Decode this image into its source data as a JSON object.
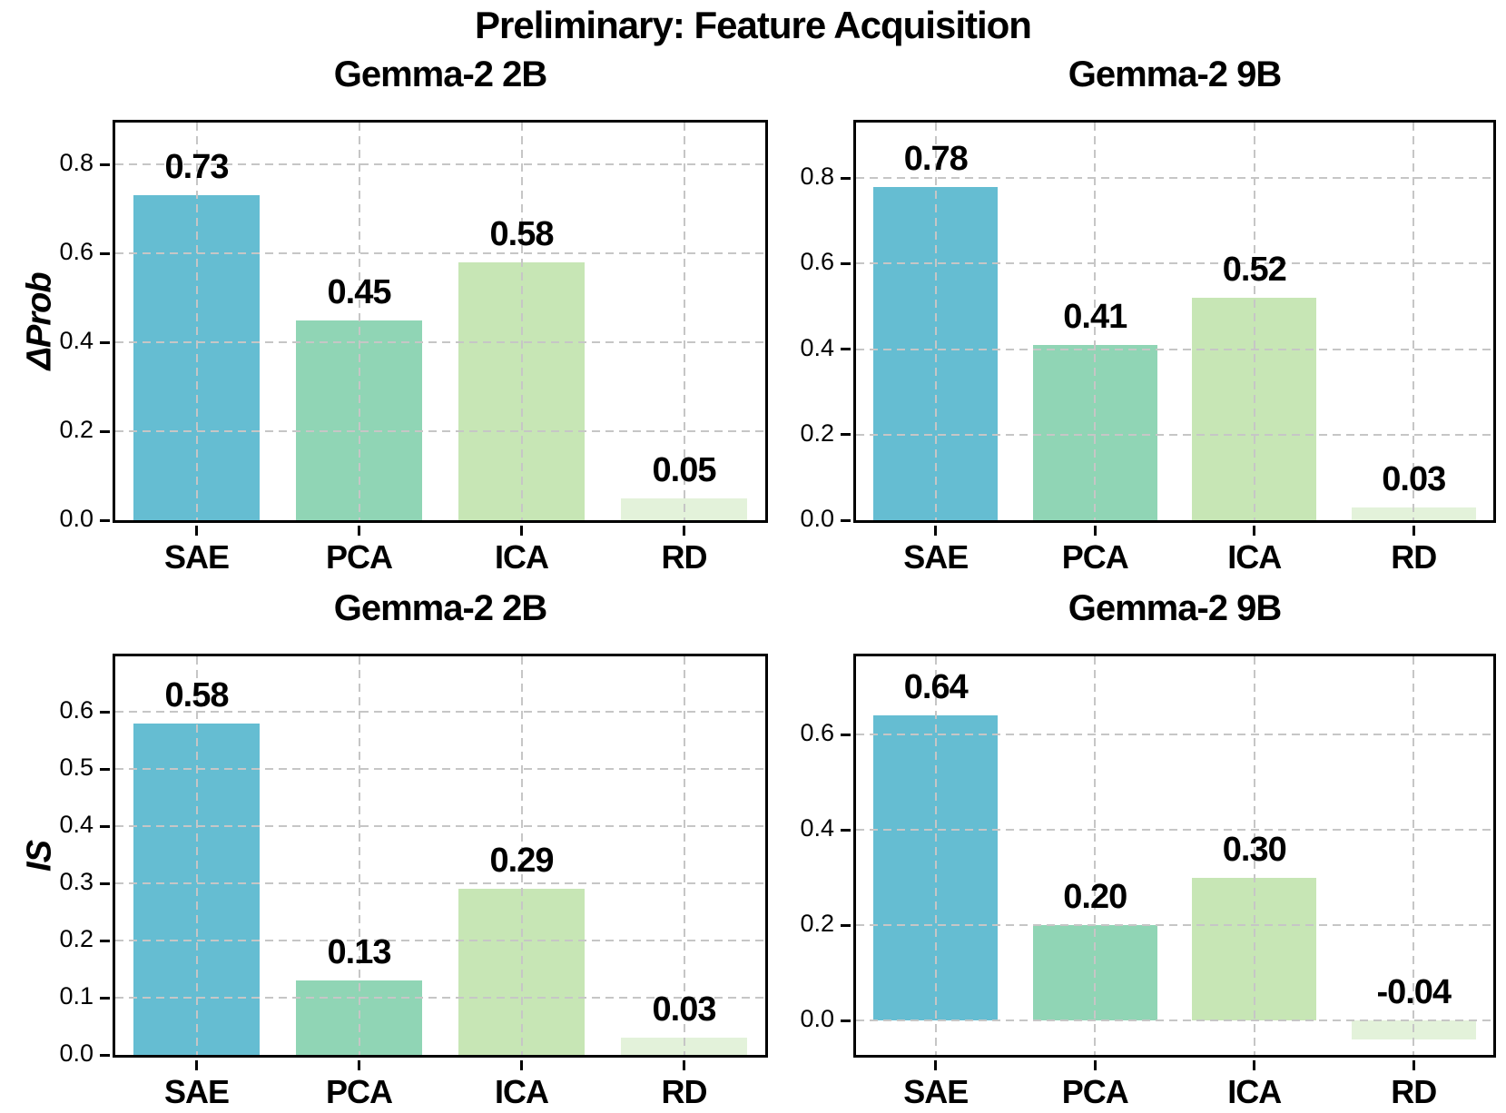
{
  "figure": {
    "title": "Preliminary: Feature Acquisition"
  },
  "colors": {
    "bar_sae": "#65bdd2",
    "bar_pca": "#90d5b5",
    "bar_ica": "#c7e6b5",
    "bar_rd": "#e3f2da",
    "gridline": "#c6c6c6",
    "spine": "#000000",
    "text": "#000000",
    "background": "#ffffff"
  },
  "chart_data": [
    {
      "id": "top-left",
      "type": "bar",
      "title": "Gemma-2 2B",
      "ylabel": "ΔProb",
      "categories": [
        "SAE",
        "PCA",
        "ICA",
        "RD"
      ],
      "values": [
        0.73,
        0.45,
        0.58,
        0.05
      ],
      "bar_labels": [
        "0.73",
        "0.45",
        "0.58",
        "0.05"
      ],
      "bar_colors": [
        "#65bdd2",
        "#90d5b5",
        "#c7e6b5",
        "#e3f2da"
      ],
      "yticks": [
        0.0,
        0.2,
        0.4,
        0.6,
        0.8
      ],
      "ytick_labels": [
        "0.0",
        "0.2",
        "0.4",
        "0.6",
        "0.8"
      ],
      "ylim": [
        0,
        0.894
      ],
      "grid": "dashed",
      "legend": "none"
    },
    {
      "id": "top-right",
      "type": "bar",
      "title": "Gemma-2 9B",
      "ylabel": "",
      "categories": [
        "SAE",
        "PCA",
        "ICA",
        "RD"
      ],
      "values": [
        0.78,
        0.41,
        0.52,
        0.03
      ],
      "bar_labels": [
        "0.78",
        "0.41",
        "0.52",
        "0.03"
      ],
      "bar_colors": [
        "#65bdd2",
        "#90d5b5",
        "#c7e6b5",
        "#e3f2da"
      ],
      "yticks": [
        0.0,
        0.2,
        0.4,
        0.6,
        0.8
      ],
      "ytick_labels": [
        "0.0",
        "0.2",
        "0.4",
        "0.6",
        "0.8"
      ],
      "ylim": [
        0,
        0.93
      ],
      "grid": "dashed",
      "legend": "none"
    },
    {
      "id": "bottom-left",
      "type": "bar",
      "title": "Gemma-2 2B",
      "ylabel": "IS",
      "categories": [
        "SAE",
        "PCA",
        "ICA",
        "RD"
      ],
      "values": [
        0.58,
        0.13,
        0.29,
        0.03
      ],
      "bar_labels": [
        "0.58",
        "0.13",
        "0.29",
        "0.03"
      ],
      "bar_colors": [
        "#65bdd2",
        "#90d5b5",
        "#c7e6b5",
        "#e3f2da"
      ],
      "yticks": [
        0.0,
        0.1,
        0.2,
        0.3,
        0.4,
        0.5,
        0.6
      ],
      "ytick_labels": [
        "0.0",
        "0.1",
        "0.2",
        "0.3",
        "0.4",
        "0.5",
        "0.6"
      ],
      "ylim": [
        0,
        0.697
      ],
      "grid": "dashed",
      "legend": "none"
    },
    {
      "id": "bottom-right",
      "type": "bar",
      "title": "Gemma-2 9B",
      "ylabel": "",
      "categories": [
        "SAE",
        "PCA",
        "ICA",
        "RD"
      ],
      "values": [
        0.64,
        0.2,
        0.3,
        -0.04
      ],
      "bar_labels": [
        "0.64",
        "0.20",
        "0.30",
        "-0.04"
      ],
      "bar_colors": [
        "#65bdd2",
        "#90d5b5",
        "#c7e6b5",
        "#e3f2da"
      ],
      "yticks": [
        0.0,
        0.2,
        0.4,
        0.6
      ],
      "ytick_labels": [
        "0.0",
        "0.2",
        "0.4",
        "0.6"
      ],
      "ylim": [
        -0.072,
        0.764
      ],
      "grid": "dashed",
      "legend": "none"
    }
  ]
}
